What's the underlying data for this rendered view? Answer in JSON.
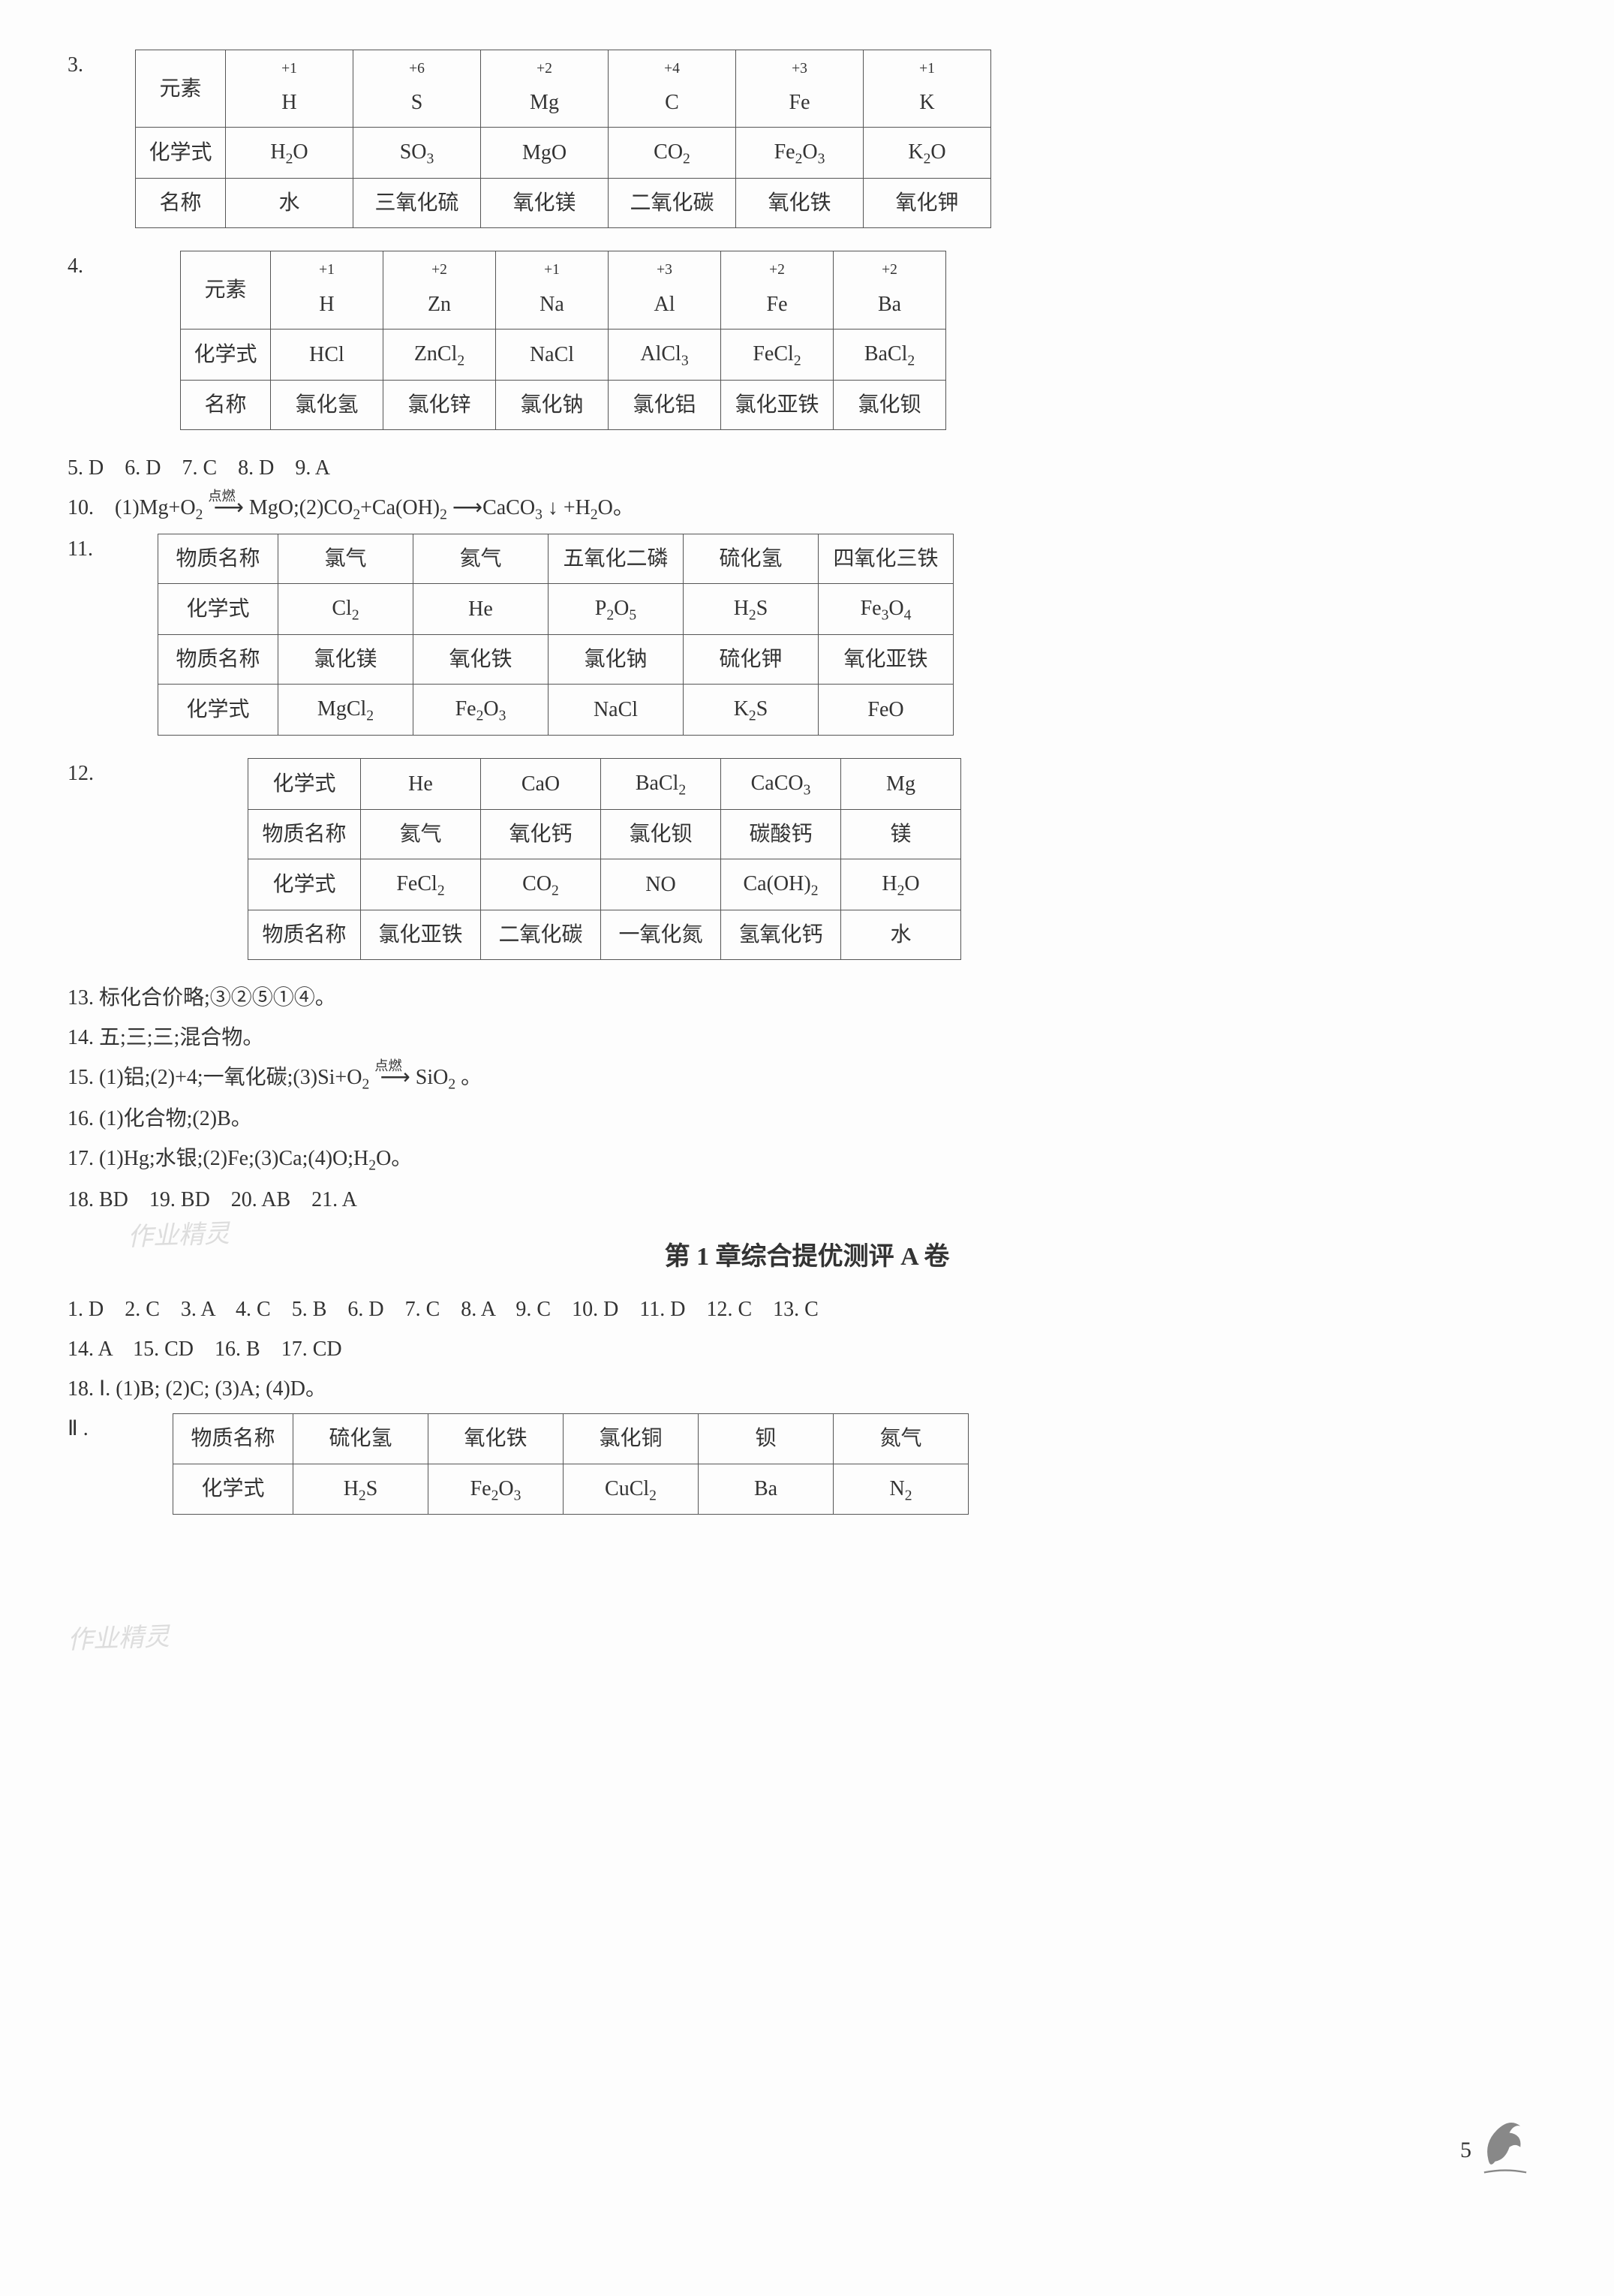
{
  "q3": {
    "headers": [
      "元素",
      "化学式",
      "名称"
    ],
    "cols": [
      {
        "val_top": "+1",
        "val_bot": "H",
        "formula": "H₂O",
        "name": "水"
      },
      {
        "val_top": "+6",
        "val_bot": "S",
        "formula": "SO₃",
        "name": "三氧化硫"
      },
      {
        "val_top": "+2",
        "val_bot": "Mg",
        "formula": "MgO",
        "name": "氧化镁"
      },
      {
        "val_top": "+4",
        "val_bot": "C",
        "formula": "CO₂",
        "name": "二氧化碳"
      },
      {
        "val_top": "+3",
        "val_bot": "Fe",
        "formula": "Fe₂O₃",
        "name": "氧化铁"
      },
      {
        "val_top": "+1",
        "val_bot": "K",
        "formula": "K₂O",
        "name": "氧化钾"
      }
    ]
  },
  "q4": {
    "headers": [
      "元素",
      "化学式",
      "名称"
    ],
    "cols": [
      {
        "val_top": "+1",
        "val_bot": "H",
        "formula": "HCl",
        "name": "氯化氢"
      },
      {
        "val_top": "+2",
        "val_bot": "Zn",
        "formula": "ZnCl₂",
        "name": "氯化锌"
      },
      {
        "val_top": "+1",
        "val_bot": "Na",
        "formula": "NaCl",
        "name": "氯化钠"
      },
      {
        "val_top": "+3",
        "val_bot": "Al",
        "formula": "AlCl₃",
        "name": "氯化铝"
      },
      {
        "val_top": "+2",
        "val_bot": "Fe",
        "formula": "FeCl₂",
        "name": "氯化亚铁"
      },
      {
        "val_top": "+2",
        "val_bot": "Ba",
        "formula": "BaCl₂",
        "name": "氯化钡"
      }
    ]
  },
  "q5_9": "5. D　6. D　7. C　8. D　9. A",
  "q10": {
    "prefix": "10.　(1)Mg+O₂",
    "arrow_label": "点燃",
    "middle": "MgO;(2)CO₂+Ca(OH)₂ ⟶CaCO₃ ↓ +H₂O。"
  },
  "q11": {
    "row_labels": [
      "物质名称",
      "化学式",
      "物质名称",
      "化学式"
    ],
    "rows": [
      [
        "氯气",
        "氦气",
        "五氧化二磷",
        "硫化氢",
        "四氧化三铁"
      ],
      [
        "Cl₂",
        "He",
        "P₂O₅",
        "H₂S",
        "Fe₃O₄"
      ],
      [
        "氯化镁",
        "氧化铁",
        "氯化钠",
        "硫化钾",
        "氧化亚铁"
      ],
      [
        "MgCl₂",
        "Fe₂O₃",
        "NaCl",
        "K₂S",
        "FeO"
      ]
    ]
  },
  "q12": {
    "row_labels": [
      "化学式",
      "物质名称",
      "化学式",
      "物质名称"
    ],
    "rows": [
      [
        "He",
        "CaO",
        "BaCl₂",
        "CaCO₃",
        "Mg"
      ],
      [
        "氦气",
        "氧化钙",
        "氯化钡",
        "碳酸钙",
        "镁"
      ],
      [
        "FeCl₂",
        "CO₂",
        "NO",
        "Ca(OH)₂",
        "H₂O"
      ],
      [
        "氯化亚铁",
        "二氧化碳",
        "一氧化氮",
        "氢氧化钙",
        "水"
      ]
    ]
  },
  "q13": "13. 标化合价略;③②⑤①④。",
  "q14": "14. 五;三;三;混合物。",
  "q15": {
    "prefix": "15. (1)铝;(2)+4;一氧化碳;(3)Si+O₂",
    "arrow_label": "点燃",
    "suffix": "SiO₂ 。"
  },
  "q16": "16. (1)化合物;(2)B。",
  "q17": "17. (1)Hg;水银;(2)Fe;(3)Ca;(4)O;H₂O。",
  "q18_21": "18. BD　19. BD　20. AB　21. A",
  "heading": "第 1 章综合提优测评 A 卷",
  "ans_line1": "1. D　2. C　3. A　4. C　5. B　6. D　7. C　8. A　9. C　10. D　11. D　12. C　13. C",
  "ans_line2": "14. A　15. CD　16. B　17. CD",
  "ans_line3": "18. Ⅰ. (1)B; (2)C; (3)A; (4)D。",
  "roman2": "Ⅱ .",
  "q18ii": {
    "row_labels": [
      "物质名称",
      "化学式"
    ],
    "rows": [
      [
        "硫化氢",
        "氧化铁",
        "氯化铜",
        "钡",
        "氮气"
      ],
      [
        "H₂S",
        "Fe₂O₃",
        "CuCl₂",
        "Ba",
        "N₂"
      ]
    ]
  },
  "page_number": "5",
  "watermark1": "作业精灵",
  "watermark2": "作业精灵",
  "top_annot": "作业",
  "table_widths": {
    "t3_col": 170,
    "t3_label": 120,
    "t4_col": 150,
    "t4_label": 120,
    "t11_col": 180,
    "t11_label": 160,
    "t12_col": 160,
    "t12_label": 150,
    "t18_col": 180,
    "t18_label": 160
  },
  "colors": {
    "text": "#333333",
    "border": "#555555",
    "watermark": "#dddddd",
    "bg": "#fdfdfd"
  }
}
